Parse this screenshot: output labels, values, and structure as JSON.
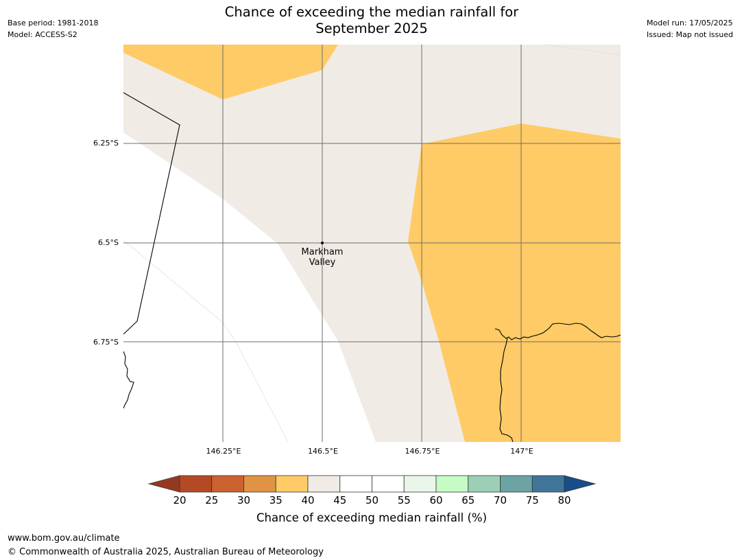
{
  "header": {
    "base_period": "Base period: 1981-2018",
    "model": "Model: ACCESS-S2",
    "model_run": "Model run: 17/05/2025",
    "issued": "Issued: Map not issued"
  },
  "map": {
    "title_line1": "Chance of exceeding the median rainfall for",
    "title_line2": "September 2025",
    "lat_labels": [
      "6.25°S",
      "6.5°S",
      "6.75°S"
    ],
    "lon_labels": [
      "146.25°E",
      "146.5°E",
      "146.75°E",
      "147°E"
    ],
    "place": {
      "line1": "Markham",
      "line2": "Valley",
      "lat": -6.5,
      "lon": 146.5
    },
    "category_colors": {
      "35-40": "#fecb66",
      "40-45": "#f0ebe5",
      "50-55": "#ffffff"
    }
  },
  "colorbar": {
    "ticks": [
      "20",
      "25",
      "30",
      "35",
      "40",
      "45",
      "50",
      "55",
      "60",
      "65",
      "70",
      "75",
      "80"
    ],
    "colors": [
      "#b34a24",
      "#cc6230",
      "#e09443",
      "#fecb66",
      "#f0ebe5",
      "#ffffff",
      "#ffffff",
      "#ebf6ea",
      "#c6fbc6",
      "#9dcfb7",
      "#6ca3a5",
      "#3f7598"
    ],
    "under_color": "#943921",
    "over_color": "#174d88",
    "title": "Chance of exceeding median rainfall (%)"
  },
  "footer": {
    "url": "www.bom.gov.au/climate",
    "copyright": "© Commonwealth of Australia 2025, Australian Bureau of Meteorology"
  }
}
